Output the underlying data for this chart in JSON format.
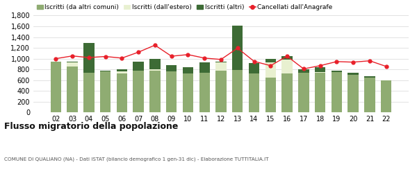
{
  "years": [
    "02",
    "03",
    "04",
    "05",
    "06",
    "07",
    "08",
    "09",
    "10",
    "11",
    "12",
    "13",
    "14",
    "15",
    "16",
    "17",
    "18",
    "19",
    "20",
    "21",
    "22"
  ],
  "iscritti_comuni": [
    940,
    860,
    740,
    760,
    720,
    775,
    780,
    760,
    730,
    740,
    780,
    795,
    720,
    645,
    730,
    740,
    735,
    745,
    700,
    645,
    600
  ],
  "iscritti_estero": [
    0,
    70,
    0,
    0,
    50,
    0,
    20,
    0,
    0,
    0,
    150,
    0,
    0,
    280,
    250,
    0,
    20,
    0,
    0,
    0,
    0
  ],
  "iscritti_altri": [
    5,
    15,
    555,
    20,
    30,
    175,
    195,
    115,
    115,
    195,
    10,
    820,
    200,
    65,
    65,
    65,
    90,
    35,
    35,
    30,
    0
  ],
  "cancellati": [
    1000,
    1050,
    1020,
    1040,
    1010,
    1120,
    1250,
    1045,
    1075,
    1010,
    985,
    1195,
    950,
    870,
    1045,
    810,
    870,
    945,
    935,
    960,
    855
  ],
  "color_comuni": "#8fac72",
  "color_estero": "#e8f0d0",
  "color_altri": "#3d6b35",
  "color_cancellati": "#e8202a",
  "title": "Flusso migratorio della popolazione",
  "subtitle": "COMUNE DI QUALIANO (NA) - Dati ISTAT (bilancio demografico 1 gen-31 dic) - Elaborazione TUTTITALIA.IT",
  "legend_labels": [
    "Iscritti (da altri comuni)",
    "Iscritti (dall'estero)",
    "Iscritti (altri)",
    "Cancellati dall'Anagrafe"
  ],
  "ylim": [
    0,
    1800
  ],
  "yticks": [
    0,
    200,
    400,
    600,
    800,
    1000,
    1200,
    1400,
    1600,
    1800
  ],
  "bg_color": "#ffffff",
  "grid_color": "#dddddd"
}
